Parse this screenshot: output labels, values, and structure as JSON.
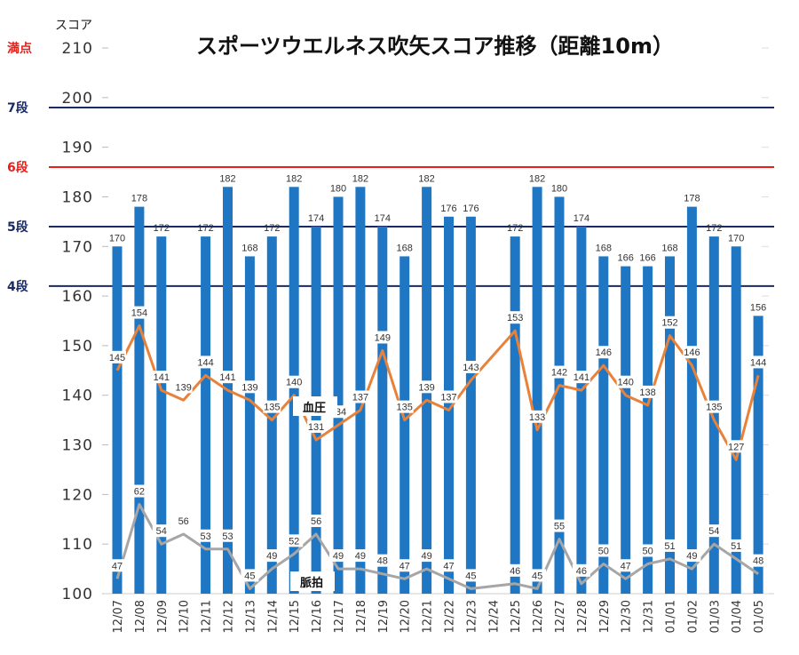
{
  "chart_data": {
    "type": "bar",
    "title": "スポーツウエルネス吹矢スコア推移（距離10m）",
    "ylabel": "スコア",
    "ylim": [
      100,
      210
    ],
    "yticks": [
      100,
      110,
      120,
      130,
      140,
      150,
      160,
      170,
      180,
      190,
      200,
      210
    ],
    "grid": false,
    "categories": [
      "12/07",
      "12/08",
      "12/09",
      "12/10",
      "12/11",
      "12/12",
      "12/13",
      "12/14",
      "12/15",
      "12/16",
      "12/17",
      "12/18",
      "12/19",
      "12/20",
      "12/21",
      "12/22",
      "12/23",
      "12/24",
      "12/25",
      "12/26",
      "12/27",
      "12/28",
      "12/29",
      "12/30",
      "12/31",
      "01/01",
      "01/02",
      "01/03",
      "01/04",
      "01/05"
    ],
    "series": [
      {
        "name": "",
        "type": "bar",
        "color": "#1f77c4",
        "values": [
          170,
          178,
          172,
          null,
          172,
          182,
          168,
          172,
          182,
          174,
          180,
          182,
          174,
          168,
          182,
          176,
          176,
          null,
          172,
          182,
          180,
          174,
          168,
          166,
          166,
          168,
          178,
          172,
          170,
          156
        ]
      },
      {
        "name": "血圧",
        "type": "line",
        "color": "#e8823a",
        "values": [
          145,
          154,
          141,
          139,
          144,
          141,
          139,
          135,
          140,
          131,
          134,
          137,
          149,
          135,
          139,
          137,
          143,
          null,
          153,
          133,
          142,
          141,
          146,
          140,
          138,
          152,
          146,
          135,
          127,
          144
        ]
      },
      {
        "name": "脈拍",
        "type": "line",
        "color": "#a6a6a6",
        "values": [
          47,
          62,
          54,
          56,
          53,
          53,
          45,
          49,
          52,
          56,
          49,
          49,
          48,
          47,
          49,
          47,
          45,
          null,
          46,
          45,
          55,
          46,
          50,
          47,
          50,
          51,
          49,
          54,
          51,
          48
        ]
      }
    ],
    "reference_lines": [
      {
        "label": "満点",
        "value": 210,
        "color": "#e8201a"
      },
      {
        "label": "7段",
        "value": 198,
        "color": "#1a2a66"
      },
      {
        "label": "6段",
        "value": 186,
        "color": "#e8201a"
      },
      {
        "label": "5段",
        "value": 174,
        "color": "#1a2a66"
      },
      {
        "label": "4段",
        "value": 162,
        "color": "#1a2a66"
      }
    ]
  }
}
